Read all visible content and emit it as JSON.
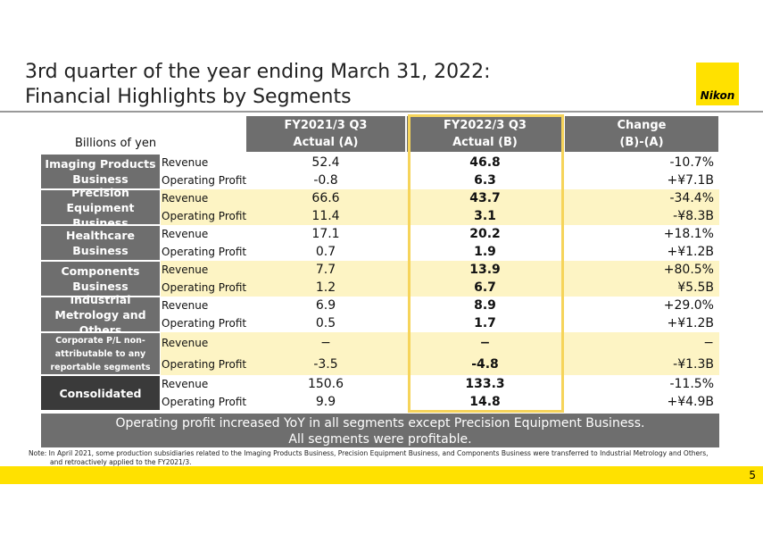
{
  "header": {
    "title": [
      "3rd quarter of the year ending March 31, 2022:",
      "Financial Highlights by Segments"
    ],
    "logo": "Nikon"
  },
  "table": {
    "unit": "Billions of yen",
    "columns": [
      [
        "FY2021/3 Q3",
        "Actual (A)"
      ],
      [
        "FY2022/3 Q3",
        "Actual (B)"
      ],
      [
        "Change",
        "(B)-(A)"
      ]
    ],
    "segments": [
      {
        "name": "Imaging Products Business",
        "rows": [
          [
            "Revenue",
            "52.4",
            "46.8",
            "-10.7%"
          ],
          [
            "Operating Profit",
            "-0.8",
            "6.3",
            "+¥7.1B"
          ]
        ]
      },
      {
        "name": "Precision Equipment Business",
        "rows": [
          [
            "Revenue",
            "66.6",
            "43.7",
            "-34.4%"
          ],
          [
            "Operating Profit",
            "11.4",
            "3.1",
            "-¥8.3B"
          ]
        ]
      },
      {
        "name": "Healthcare Business",
        "rows": [
          [
            "Revenue",
            "17.1",
            "20.2",
            "+18.1%"
          ],
          [
            "Operating Profit",
            "0.7",
            "1.9",
            "+¥1.2B"
          ]
        ]
      },
      {
        "name": "Components Business",
        "rows": [
          [
            "Revenue",
            "7.7",
            "13.9",
            "+80.5%"
          ],
          [
            "Operating Profit",
            "1.2",
            "6.7",
            "¥5.5B"
          ]
        ]
      },
      {
        "name": "Industrial Metrology and Others",
        "rows": [
          [
            "Revenue",
            "6.9",
            "8.9",
            "+29.0%"
          ],
          [
            "Operating Profit",
            "0.5",
            "1.7",
            "+¥1.2B"
          ]
        ]
      },
      {
        "name": "Corporate P/L non-attributable to any reportable segments",
        "rows": [
          [
            "Revenue",
            "−",
            "−",
            "−"
          ],
          [
            "Operating Profit",
            "-3.5",
            "-4.8",
            "-¥1.3B"
          ]
        ]
      },
      {
        "name": "Consolidated",
        "rows": [
          [
            "Revenue",
            "150.6",
            "133.3",
            "-11.5%"
          ],
          [
            "Operating Profit",
            "9.9",
            "14.8",
            "+¥4.9B"
          ]
        ]
      }
    ]
  },
  "summary": [
    "Operating profit increased YoY in all segments except Precision Equipment Business.",
    "All segments were profitable."
  ],
  "note": [
    "Note: In April 2021, some production subsidiaries related to the Imaging Products Business, Precision Equipment Business, and Components Business were transferred to Industrial Metrology and Others,",
    "and retroactively applied to the FY2021/3."
  ],
  "page_number": "5"
}
